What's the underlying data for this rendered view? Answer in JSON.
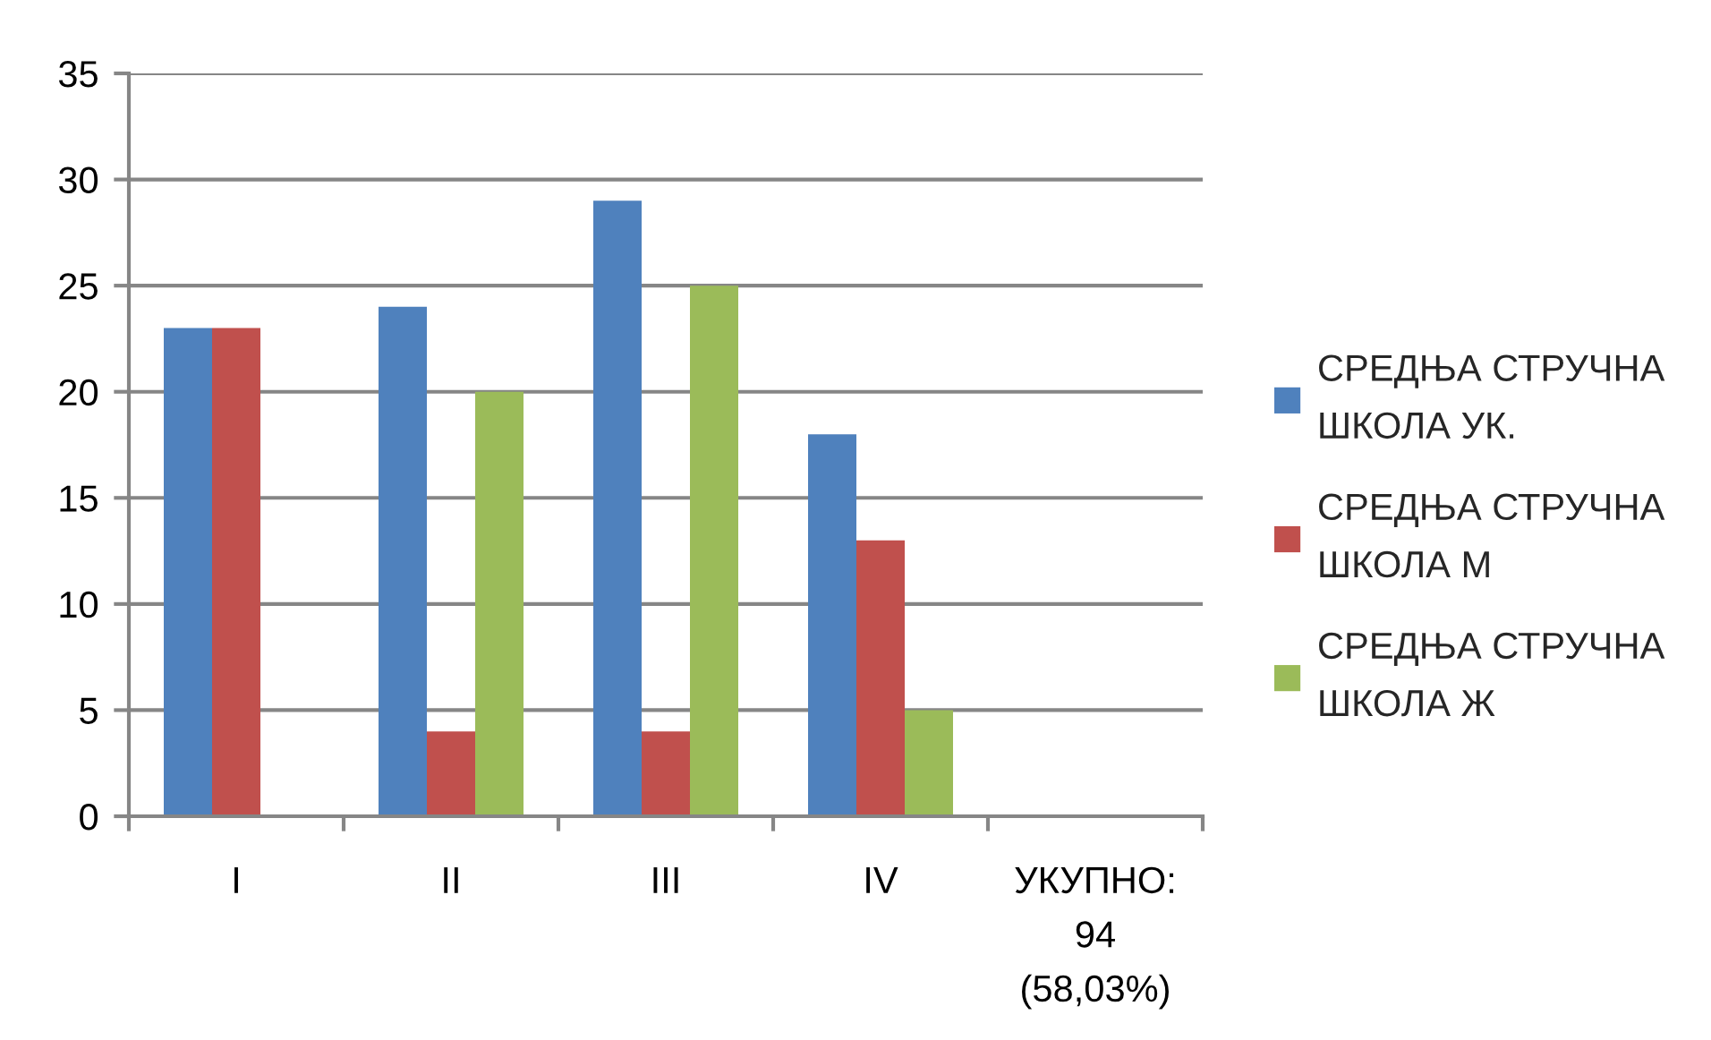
{
  "chart_data": {
    "type": "bar",
    "categories": [
      "I",
      "II",
      "III",
      "IV",
      "УКУПНО:\n94\n(58,03%)"
    ],
    "series": [
      {
        "name": "СРЕДЊА СТРУЧНА ШКОЛА УК.",
        "color": "#4f81bd",
        "values": [
          23,
          24,
          29,
          18,
          null
        ]
      },
      {
        "name": "СРЕДЊА СТРУЧНА ШКОЛА М",
        "color": "#c0504d",
        "values": [
          23,
          4,
          4,
          13,
          null
        ]
      },
      {
        "name": "СРЕДЊА СТРУЧНА ШКОЛА Ж",
        "color": "#9bbb59",
        "values": [
          null,
          20,
          25,
          5,
          null
        ]
      }
    ],
    "ylim": [
      0,
      35
    ],
    "yticks": [
      0,
      5,
      10,
      15,
      20,
      25,
      30,
      35
    ],
    "grid": "y",
    "legend": "right"
  }
}
